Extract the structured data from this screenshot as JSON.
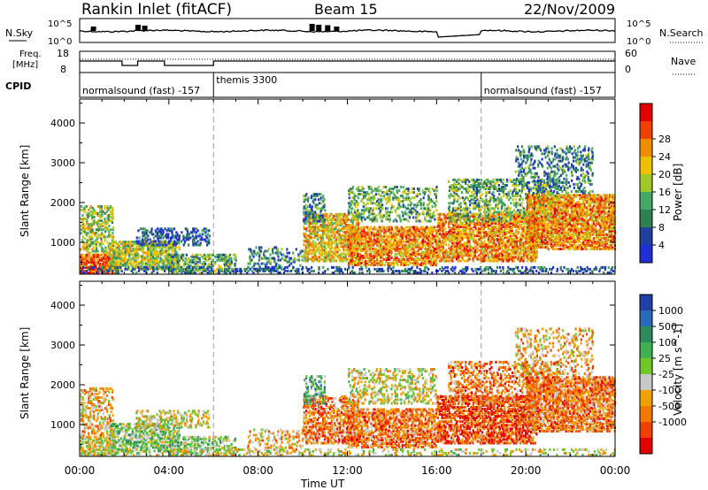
{
  "header": {
    "station": "Rankin Inlet (fitACF)",
    "beam": "Beam 15",
    "date": "22/Nov/2009"
  },
  "top_panels": {
    "nsky_label": "N.Sky",
    "nsky_ticks": [
      "10^5",
      "10^0"
    ],
    "nsearch_label": "N.Search",
    "nsearch_ticks": [
      "10^5",
      "10^0"
    ],
    "freq_label_1": "Freq.",
    "freq_label_2": "[MHz]",
    "freq_ticks": [
      "18",
      "8"
    ],
    "nave_label": "Nave",
    "nave_ticks": [
      "60",
      "0"
    ],
    "cpid_label": "CPID",
    "cpid_segments": [
      {
        "label": "normalsound (fast) -157",
        "start_hour": 0
      },
      {
        "label": "themis 3300",
        "start_hour": 6
      },
      {
        "label": "normalsound (fast) -157",
        "start_hour": 18
      }
    ]
  },
  "colors": {
    "power": [
      "#1f2fd6",
      "#2040a0",
      "#2e8050",
      "#44a868",
      "#a0c828",
      "#f0c000",
      "#f08c00",
      "#f04000",
      "#e00000"
    ],
    "velocity": [
      "#2040a8",
      "#2a6ab8",
      "#2e8a5a",
      "#40b050",
      "#70c828",
      "#c8c8c8",
      "#f0a000",
      "#f07800",
      "#f04000",
      "#e00000"
    ]
  },
  "chart_data": [
    {
      "type": "heatmap",
      "title": "Power",
      "xlabel": "Time UT",
      "ylabel": "Slant Range [km]",
      "xlim_hours": [
        0,
        24
      ],
      "ylim": [
        200,
        4600
      ],
      "x_tick_labels": [
        "00:00",
        "04:00",
        "08:00",
        "12:00",
        "16:00",
        "20:00",
        "00:00"
      ],
      "y_tick_labels": [
        "1000",
        "2000",
        "3000",
        "4000"
      ],
      "colorbar_label": "Power [dB]",
      "colorbar_ticks": [
        "4",
        "8",
        "12",
        "16",
        "20",
        "24",
        "28"
      ],
      "scatter_regions": [
        {
          "t0": 0.0,
          "t1": 1.6,
          "r0": 200,
          "r1": 700,
          "mean_level": 7,
          "density": 0.9
        },
        {
          "t0": 0.0,
          "t1": 1.5,
          "r0": 700,
          "r1": 1900,
          "mean_level": 4,
          "density": 0.55
        },
        {
          "t0": 1.3,
          "t1": 4.5,
          "r0": 300,
          "r1": 1000,
          "mean_level": 4,
          "density": 0.8
        },
        {
          "t0": 2.5,
          "t1": 5.8,
          "r0": 900,
          "r1": 1350,
          "mean_level": 1,
          "density": 0.5
        },
        {
          "t0": 4.0,
          "t1": 7.0,
          "r0": 200,
          "r1": 700,
          "mean_level": 3,
          "density": 0.55
        },
        {
          "t0": 7.5,
          "t1": 10.0,
          "r0": 250,
          "r1": 900,
          "mean_level": 2,
          "density": 0.35
        },
        {
          "t0": 10.0,
          "t1": 12.5,
          "r0": 500,
          "r1": 1700,
          "mean_level": 5,
          "density": 0.7
        },
        {
          "t0": 10.0,
          "t1": 11.0,
          "r0": 1500,
          "r1": 2200,
          "mean_level": 2,
          "density": 0.5
        },
        {
          "t0": 12.0,
          "t1": 16.0,
          "r0": 400,
          "r1": 1400,
          "mean_level": 6,
          "density": 0.75
        },
        {
          "t0": 12.0,
          "t1": 16.0,
          "r0": 1500,
          "r1": 2400,
          "mean_level": 3,
          "density": 0.4
        },
        {
          "t0": 16.0,
          "t1": 20.5,
          "r0": 500,
          "r1": 1700,
          "mean_level": 6,
          "density": 0.75
        },
        {
          "t0": 16.5,
          "t1": 21.5,
          "r0": 1500,
          "r1": 2600,
          "mean_level": 3,
          "density": 0.45
        },
        {
          "t0": 20.0,
          "t1": 24.0,
          "r0": 800,
          "r1": 2200,
          "mean_level": 6,
          "density": 0.8
        },
        {
          "t0": 19.5,
          "t1": 23.0,
          "r0": 2200,
          "r1": 3400,
          "mean_level": 2,
          "density": 0.35
        },
        {
          "t0": 0.0,
          "t1": 24.0,
          "r0": 200,
          "r1": 400,
          "mean_level": 1,
          "density": 0.35
        }
      ]
    },
    {
      "type": "heatmap",
      "title": "Velocity",
      "xlabel": "Time UT",
      "ylabel": "Slant Range [km]",
      "xlim_hours": [
        0,
        24
      ],
      "ylim": [
        200,
        4600
      ],
      "x_tick_labels": [
        "00:00",
        "04:00",
        "08:00",
        "12:00",
        "16:00",
        "20:00",
        "00:00"
      ],
      "y_tick_labels": [
        "1000",
        "2000",
        "3000",
        "4000"
      ],
      "colorbar_label": "Velocity [m s^-1]",
      "colorbar_ticks": [
        "1000",
        "500",
        "100",
        "25",
        "-25",
        "-100",
        "-500",
        "-1000"
      ],
      "scatter_regions": [
        {
          "t0": 0.0,
          "t1": 1.6,
          "r0": 200,
          "r1": 700,
          "mean_level": 5,
          "density": 0.75
        },
        {
          "t0": 0.0,
          "t1": 1.5,
          "r0": 700,
          "r1": 1900,
          "mean_level": 6,
          "density": 0.45
        },
        {
          "t0": 1.3,
          "t1": 4.5,
          "r0": 300,
          "r1": 1000,
          "mean_level": 4,
          "density": 0.7
        },
        {
          "t0": 2.5,
          "t1": 5.8,
          "r0": 900,
          "r1": 1350,
          "mean_level": 5,
          "density": 0.45
        },
        {
          "t0": 4.0,
          "t1": 7.0,
          "r0": 200,
          "r1": 700,
          "mean_level": 4,
          "density": 0.5
        },
        {
          "t0": 7.5,
          "t1": 10.0,
          "r0": 250,
          "r1": 900,
          "mean_level": 6,
          "density": 0.3
        },
        {
          "t0": 10.0,
          "t1": 12.5,
          "r0": 500,
          "r1": 1700,
          "mean_level": 7,
          "density": 0.6
        },
        {
          "t0": 10.0,
          "t1": 11.0,
          "r0": 1500,
          "r1": 2200,
          "mean_level": 3,
          "density": 0.45
        },
        {
          "t0": 12.0,
          "t1": 16.0,
          "r0": 400,
          "r1": 1400,
          "mean_level": 7,
          "density": 0.7
        },
        {
          "t0": 12.0,
          "t1": 16.0,
          "r0": 1500,
          "r1": 2400,
          "mean_level": 5,
          "density": 0.35
        },
        {
          "t0": 16.0,
          "t1": 20.5,
          "r0": 500,
          "r1": 1700,
          "mean_level": 8,
          "density": 0.7
        },
        {
          "t0": 16.5,
          "t1": 21.5,
          "r0": 1500,
          "r1": 2600,
          "mean_level": 7,
          "density": 0.4
        },
        {
          "t0": 20.0,
          "t1": 24.0,
          "r0": 800,
          "r1": 2200,
          "mean_level": 7,
          "density": 0.75
        },
        {
          "t0": 19.5,
          "t1": 23.0,
          "r0": 2200,
          "r1": 3400,
          "mean_level": 6,
          "density": 0.3
        },
        {
          "t0": 0.0,
          "t1": 24.0,
          "r0": 200,
          "r1": 400,
          "mean_level": 5,
          "density": 0.3
        }
      ]
    }
  ],
  "vertical_markers_hours": [
    6,
    18
  ]
}
